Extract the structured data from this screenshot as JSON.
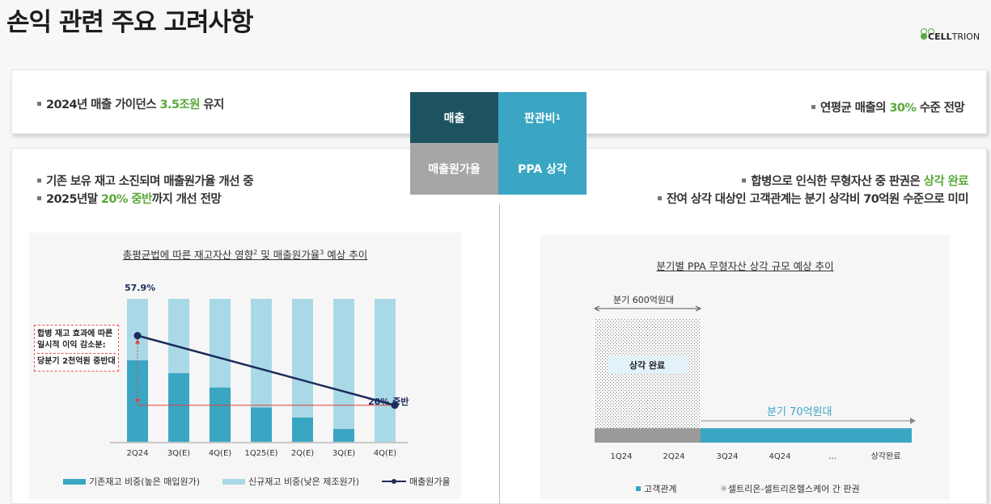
{
  "title": "손익 관련 주요 고려사항",
  "logo": {
    "text_bold": "CELL",
    "text_light": "TRION"
  },
  "colors": {
    "green": "#5aa93b",
    "dark_teal": "#1d5361",
    "teal": "#3aa6c3",
    "gray": "#a6a6a6",
    "light_blue": "#a9d9e6",
    "navy": "#1d2b5c",
    "red": "#e0423a",
    "hatch": "#cccccc"
  },
  "top": {
    "left_prefix": "2024년 매출 가이던스 ",
    "left_highlight": "3.5조원",
    "left_suffix": " 유지",
    "right_prefix": "연평균 매출의 ",
    "right_highlight": "30%",
    "right_suffix": " 수준 전망"
  },
  "matrix": {
    "sales": "매출",
    "sga": "판관비",
    "sga_sup": "1",
    "cogs": "매출원가율",
    "ppa": "PPA 상각"
  },
  "left": {
    "bullet1": "기존 보유 재고 소진되며 매출원가율 개선 중",
    "bullet2_prefix": "2025년말 ",
    "bullet2_highlight": "20% 중반",
    "bullet2_suffix": "까지 개선 전망"
  },
  "right": {
    "bullet1_prefix": "합병으로 인식한 무형자산 중 판권은 ",
    "bullet1_highlight": "상각 완료",
    "bullet2": "잔여 상각 대상인 고객관계는 분기 상각비 70억원 수준으로 미미"
  },
  "left_chart": {
    "title_a": "총평균법에 따른 재고자산 영향",
    "title_sup1": "2",
    "title_b": " 및 매출원가율",
    "title_sup2": "3",
    "title_c": " 예상 추이",
    "start_label": "57.9%",
    "end_label": "20% 중반",
    "annot_line1": "합병 재고 효과에 따른",
    "annot_line2": "일시적 이익 감소분:",
    "annot_line3": "당분기 2천억원 중반대",
    "legend": [
      "기존재고 비중(높은 매입원가)",
      "신규재고 비중(낮은 제조원가)",
      "매출원가율"
    ]
  },
  "right_chart": {
    "title": "분기별 PPA 무형자산 상각 규모 예상 추이",
    "bracket_label": "분기 600억원대",
    "box_label": "상각 완료",
    "bar_label": "분기 70억원대",
    "categories": [
      "1Q24",
      "2Q24",
      "3Q24",
      "4Q24",
      "…",
      "상각완료"
    ],
    "legend": [
      "고객관계",
      "셀트리온-셀트리온헬스케어 간 판권"
    ]
  },
  "chart_data": [
    {
      "type": "bar",
      "title": "총평균법에 따른 재고자산 영향 및 매출원가율 예상 추이",
      "categories": [
        "2Q24",
        "3Q(E)",
        "4Q(E)",
        "1Q25(E)",
        "2Q(E)",
        "3Q(E)",
        "4Q(E)"
      ],
      "series": [
        {
          "name": "기존재고 비중(높은 매입원가)",
          "values": [
            57,
            48,
            38,
            24,
            17,
            9,
            0
          ]
        },
        {
          "name": "신규재고 비중(낮은 제조원가)",
          "values": [
            43,
            52,
            62,
            76,
            83,
            91,
            100
          ]
        },
        {
          "name": "매출원가율",
          "type": "line",
          "points": [
            {
              "x": "2Q24",
              "y": 57.9
            },
            {
              "x": "4Q(E)",
              "y": 25
            }
          ]
        }
      ],
      "ylim": [
        0,
        100
      ]
    },
    {
      "type": "bar",
      "title": "분기별 PPA 무형자산 상각 규모 예상 추이",
      "categories": [
        "1Q24",
        "2Q24",
        "3Q24",
        "4Q24",
        "…",
        "상각완료"
      ],
      "series": [
        {
          "name": "셀트리온-셀트리온헬스케어 간 판권",
          "values": [
            530,
            530,
            0,
            0,
            0,
            0
          ]
        },
        {
          "name": "고객관계",
          "values": [
            70,
            70,
            70,
            70,
            70,
            70
          ]
        }
      ],
      "ylim": [
        0,
        600
      ]
    }
  ]
}
